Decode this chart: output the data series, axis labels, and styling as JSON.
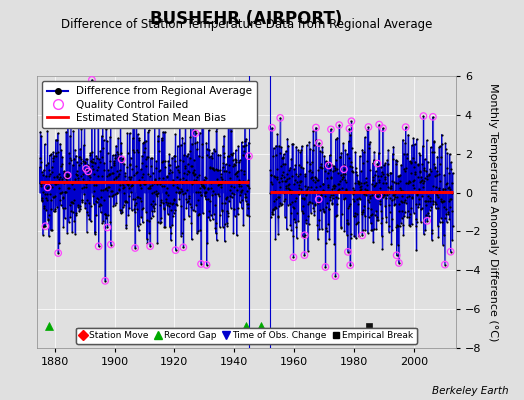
{
  "title": "BUSHEHR (AIRPORT)",
  "subtitle": "Difference of Station Temperature Data from Regional Average",
  "ylabel": "Monthly Temperature Anomaly Difference (°C)",
  "credit": "Berkeley Earth",
  "xlim": [
    1874,
    2014
  ],
  "ylim": [
    -8,
    6
  ],
  "yticks": [
    -8,
    -6,
    -4,
    -2,
    0,
    2,
    4,
    6
  ],
  "xticks": [
    1880,
    1900,
    1920,
    1940,
    1960,
    1980,
    2000
  ],
  "segment1_start": 1875.0,
  "segment1_end": 1945.0,
  "segment2_start": 1952.0,
  "segment2_end": 2013.0,
  "bias1": 0.55,
  "bias2": 0.05,
  "gap_start": 1945.0,
  "gap_end": 1952.0,
  "record_gaps": [
    1878,
    1944,
    1949
  ],
  "empirical_breaks": [
    1985
  ],
  "background_color": "#e0e0e0",
  "plot_bg_color": "#e0e0e0",
  "line_color": "#0000cc",
  "bias_color": "#ff0000",
  "qc_color": "#ff44ff",
  "data_color": "#000000",
  "title_fontsize": 12,
  "subtitle_fontsize": 8.5,
  "axis_fontsize": 8,
  "legend_fontsize": 7.5,
  "seed": 42,
  "std1": 1.5,
  "std2": 1.4,
  "seasonal_amp": 1.0,
  "qc_threshold": 3.2,
  "qc_random_rate": 0.015
}
